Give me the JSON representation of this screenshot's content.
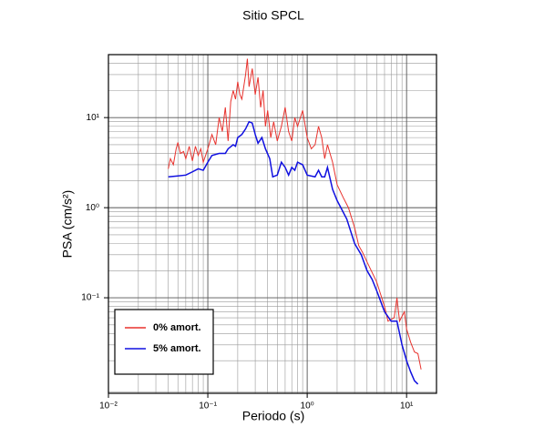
{
  "chart_data": {
    "type": "line",
    "title": "Sitio SPCL",
    "x_label": "Periodo (s)",
    "y_label": "PSA (cm/s²)",
    "xlog": true,
    "ylog": true,
    "grid": true,
    "legend_position": "lower left",
    "xlim": [
      0.01,
      20
    ],
    "ylim": [
      0.0087,
      50
    ],
    "xticks": [
      {
        "value": 0.01,
        "label": "10⁻²"
      },
      {
        "value": 0.1,
        "label": "10⁻¹"
      },
      {
        "value": 1,
        "label": "10⁰"
      },
      {
        "value": 10,
        "label": "10¹"
      }
    ],
    "yticks": [
      {
        "value": 0.1,
        "label": "10⁻¹"
      },
      {
        "value": 1,
        "label": "10⁰"
      },
      {
        "value": 10,
        "label": "10¹"
      }
    ],
    "series": [
      {
        "name": "0% amort.",
        "color": "#e8322d",
        "x": [
          0.04,
          0.042,
          0.045,
          0.048,
          0.05,
          0.053,
          0.057,
          0.06,
          0.065,
          0.07,
          0.075,
          0.08,
          0.085,
          0.09,
          0.1,
          0.11,
          0.12,
          0.13,
          0.14,
          0.15,
          0.16,
          0.17,
          0.18,
          0.19,
          0.2,
          0.21,
          0.22,
          0.24,
          0.25,
          0.26,
          0.28,
          0.3,
          0.32,
          0.34,
          0.36,
          0.38,
          0.4,
          0.43,
          0.46,
          0.5,
          0.55,
          0.6,
          0.65,
          0.7,
          0.75,
          0.8,
          0.9,
          1.0,
          1.1,
          1.2,
          1.3,
          1.4,
          1.5,
          1.6,
          1.8,
          2.0,
          2.3,
          2.6,
          3.0,
          3.3,
          3.6,
          4.0,
          5.0,
          6.0,
          6.5,
          7.5,
          8.0,
          8.5,
          9.5,
          10,
          11,
          12,
          13,
          14
        ],
        "values": [
          2.7,
          3.5,
          3.0,
          4.5,
          5.3,
          4.0,
          4.2,
          3.5,
          4.8,
          3.3,
          4.8,
          3.8,
          4.5,
          3.2,
          4.5,
          6.5,
          5.0,
          10,
          7.0,
          13,
          5.5,
          15,
          20,
          16,
          25,
          18,
          16,
          30,
          45,
          22,
          35,
          18,
          28,
          13,
          20,
          8,
          12,
          6,
          9,
          5.5,
          8,
          13,
          7,
          5.5,
          10,
          8,
          12,
          6,
          4.5,
          5.0,
          8,
          6,
          3.5,
          5,
          3.2,
          1.8,
          1.3,
          1.0,
          0.6,
          0.38,
          0.32,
          0.25,
          0.15,
          0.08,
          0.055,
          0.06,
          0.1,
          0.055,
          0.07,
          0.045,
          0.032,
          0.025,
          0.024,
          0.016
        ]
      },
      {
        "name": "5% amort.",
        "color": "#1010e0",
        "x": [
          0.04,
          0.05,
          0.06,
          0.07,
          0.08,
          0.09,
          0.1,
          0.11,
          0.13,
          0.15,
          0.16,
          0.18,
          0.19,
          0.2,
          0.22,
          0.24,
          0.26,
          0.28,
          0.3,
          0.32,
          0.35,
          0.38,
          0.42,
          0.45,
          0.5,
          0.55,
          0.6,
          0.65,
          0.7,
          0.75,
          0.8,
          0.9,
          1.0,
          1.2,
          1.3,
          1.4,
          1.5,
          1.6,
          1.8,
          2.0,
          2.5,
          3.0,
          3.5,
          4.0,
          4.5,
          5.0,
          6.0,
          7.0,
          8.0,
          9.0,
          10,
          11,
          12,
          13
        ],
        "values": [
          2.2,
          2.25,
          2.3,
          2.5,
          2.7,
          2.6,
          3.2,
          3.8,
          4.0,
          4.0,
          4.5,
          5.0,
          4.8,
          6.0,
          6.5,
          7.5,
          9.0,
          8.7,
          6.5,
          5.2,
          6.0,
          4.5,
          3.5,
          2.2,
          2.3,
          3.2,
          2.8,
          2.3,
          2.8,
          2.6,
          3.2,
          3.0,
          2.3,
          2.2,
          2.6,
          2.2,
          2.2,
          2.8,
          1.6,
          1.2,
          0.75,
          0.4,
          0.3,
          0.2,
          0.16,
          0.12,
          0.07,
          0.055,
          0.055,
          0.03,
          0.02,
          0.015,
          0.012,
          0.011
        ]
      }
    ]
  }
}
